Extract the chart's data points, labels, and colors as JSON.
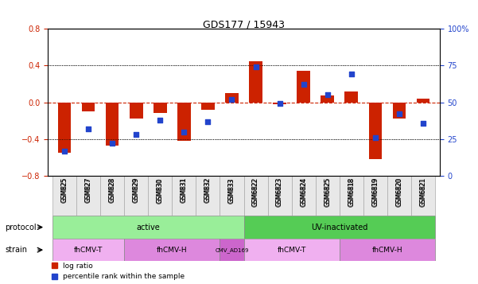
{
  "title": "GDS177 / 15943",
  "samples": [
    "GSM825",
    "GSM827",
    "GSM828",
    "GSM829",
    "GSM830",
    "GSM831",
    "GSM832",
    "GSM833",
    "GSM6822",
    "GSM6823",
    "GSM6824",
    "GSM6825",
    "GSM6818",
    "GSM6819",
    "GSM6820",
    "GSM6821"
  ],
  "log_ratio": [
    -0.55,
    -0.1,
    -0.47,
    -0.18,
    -0.12,
    -0.42,
    -0.08,
    0.1,
    0.44,
    -0.02,
    0.34,
    0.07,
    0.12,
    -0.62,
    -0.18,
    0.04
  ],
  "pct_rank": [
    17,
    32,
    22,
    28,
    38,
    30,
    37,
    52,
    74,
    49,
    62,
    55,
    69,
    26,
    42,
    36
  ],
  "ylim_left": [
    -0.8,
    0.8
  ],
  "ylim_right": [
    0,
    100
  ],
  "yticks_left": [
    -0.8,
    -0.4,
    0,
    0.4,
    0.8
  ],
  "yticks_right": [
    0,
    25,
    50,
    75,
    100
  ],
  "bar_color": "#cc2200",
  "dot_color": "#2244cc",
  "zero_line_color": "#cc2200",
  "grid_color": "#000000",
  "protocol_active_color": "#99ee99",
  "protocol_uv_color": "#55cc55",
  "strain_fhCMVT_color": "#ee99ee",
  "strain_fhCMVH_color": "#cc66cc",
  "strain_CMV_color": "#dd55dd",
  "protocol_groups": [
    {
      "label": "active",
      "start": 0,
      "end": 8
    },
    {
      "label": "UV-inactivated",
      "start": 8,
      "end": 16
    }
  ],
  "strain_groups": [
    {
      "label": "fhCMV-T",
      "start": 0,
      "end": 3,
      "color": "#f0b0f0"
    },
    {
      "label": "fhCMV-H",
      "start": 3,
      "end": 7,
      "color": "#dd88dd"
    },
    {
      "label": "CMV_AD169",
      "start": 7,
      "end": 8,
      "color": "#cc66cc"
    },
    {
      "label": "fhCMV-T",
      "start": 8,
      "end": 12,
      "color": "#f0b0f0"
    },
    {
      "label": "fhCMV-H",
      "start": 12,
      "end": 16,
      "color": "#dd88dd"
    }
  ]
}
